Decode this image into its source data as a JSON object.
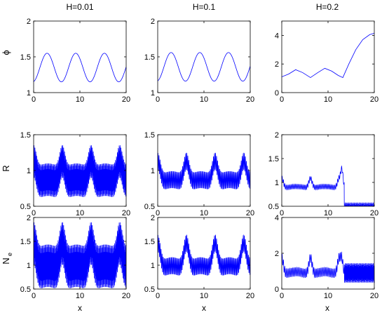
{
  "figure": {
    "col_titles": [
      "H=0.01",
      "H=0.1",
      "H=0.2"
    ],
    "row_labels": [
      "ϕ",
      "R",
      "N",
      "e"
    ],
    "xlabel": "x"
  },
  "style": {
    "line_color": "#0000ff",
    "axis_color": "#000000"
  },
  "chart_data": [
    {
      "type": "line",
      "row": 0,
      "col": 0,
      "H": 0.01,
      "ylabel": "ϕ",
      "xlim": [
        0,
        20
      ],
      "ylim": [
        1,
        2
      ],
      "xticks": [
        0,
        10,
        20
      ],
      "yticks": [
        1,
        1.5,
        2
      ],
      "model": {
        "kind": "cos",
        "mean": 1.35,
        "amp": 0.2,
        "period": 6.2,
        "phase": 2.9,
        "band": 0
      },
      "grid": false,
      "legend": false
    },
    {
      "type": "line",
      "row": 0,
      "col": 1,
      "H": 0.1,
      "ylabel": "",
      "xlim": [
        0,
        20
      ],
      "ylim": [
        1,
        2
      ],
      "xticks": [
        0,
        10,
        20
      ],
      "yticks": [
        1,
        1.5,
        2
      ],
      "model": {
        "kind": "cos",
        "mean": 1.36,
        "amp": 0.2,
        "period": 6.2,
        "phase": 2.9,
        "band": 0
      },
      "grid": false,
      "legend": false
    },
    {
      "type": "line",
      "row": 0,
      "col": 2,
      "H": 0.2,
      "ylabel": "",
      "xlim": [
        0,
        20
      ],
      "ylim": [
        0,
        5
      ],
      "xticks": [
        0,
        10,
        20
      ],
      "yticks": [
        0,
        2,
        4
      ],
      "x": [
        0,
        1.5,
        3,
        4.5,
        6.2,
        7.8,
        9.3,
        10.8,
        12.2,
        13.2,
        14.5,
        16,
        17.5,
        19,
        20
      ],
      "y": [
        1.1,
        1.3,
        1.6,
        1.4,
        1.05,
        1.4,
        1.7,
        1.5,
        1.2,
        1.05,
        2.0,
        3.0,
        3.7,
        4.05,
        4.15
      ],
      "grid": false,
      "legend": false
    },
    {
      "type": "line",
      "row": 1,
      "col": 0,
      "H": 0.01,
      "ylabel": "R",
      "xlim": [
        0,
        20
      ],
      "ylim": [
        0.5,
        1.5
      ],
      "xticks": [
        0,
        10,
        20
      ],
      "yticks": [
        0.5,
        1,
        1.5
      ],
      "model": {
        "kind": "peaks",
        "base": 0.85,
        "peak": 1.15,
        "period": 6.2,
        "width": 0.8,
        "band": 0.23,
        "freq": 25
      },
      "grid": false,
      "legend": false
    },
    {
      "type": "line",
      "row": 1,
      "col": 1,
      "H": 0.1,
      "ylabel": "",
      "xlim": [
        0,
        20
      ],
      "ylim": [
        0.5,
        1.5
      ],
      "xticks": [
        0,
        10,
        20
      ],
      "yticks": [
        0.5,
        1,
        1.5
      ],
      "model": {
        "kind": "peaks",
        "base": 0.85,
        "peak": 1.15,
        "period": 6.2,
        "width": 0.8,
        "band": 0.12,
        "freq": 4.5
      },
      "grid": false,
      "legend": false
    },
    {
      "type": "line",
      "row": 1,
      "col": 2,
      "H": 0.2,
      "ylabel": "",
      "xlim": [
        0,
        20
      ],
      "ylim": [
        0.5,
        2
      ],
      "xticks": [
        0,
        10,
        20
      ],
      "yticks": [
        0.5,
        1,
        1.5,
        2
      ],
      "model": {
        "kind": "peaks",
        "base": 0.9,
        "peak": 1.1,
        "period": 6.2,
        "width": 0.5,
        "band": 0.05,
        "freq": 3.5,
        "spike": [
          13,
          1.45
        ],
        "tail": [
          13.5,
          0.4,
          0.18,
          14
        ]
      },
      "grid": false,
      "legend": false
    },
    {
      "type": "line",
      "row": 2,
      "col": 0,
      "H": 0.01,
      "ylabel": "N_e",
      "xlim": [
        0,
        20
      ],
      "ylim": [
        0.5,
        2
      ],
      "xticks": [
        0,
        10,
        20
      ],
      "yticks": [
        0.5,
        1,
        1.5,
        2
      ],
      "model": {
        "kind": "peaks",
        "base": 0.95,
        "peak": 1.5,
        "period": 6.2,
        "width": 0.8,
        "band": 0.45,
        "freq": 25
      },
      "grid": false,
      "legend": false
    },
    {
      "type": "line",
      "row": 2,
      "col": 1,
      "H": 0.1,
      "ylabel": "",
      "xlim": [
        0,
        20
      ],
      "ylim": [
        0.5,
        2
      ],
      "xticks": [
        0,
        10,
        20
      ],
      "yticks": [
        0.5,
        1,
        1.5,
        2
      ],
      "model": {
        "kind": "peaks",
        "base": 0.95,
        "peak": 1.5,
        "period": 6.2,
        "width": 0.8,
        "band": 0.18,
        "freq": 4.5
      },
      "grid": false,
      "legend": false
    },
    {
      "type": "line",
      "row": 2,
      "col": 2,
      "H": 0.2,
      "ylabel": "",
      "xlim": [
        0,
        20
      ],
      "ylim": [
        0,
        4
      ],
      "xticks": [
        0,
        10,
        20
      ],
      "yticks": [
        0,
        2,
        4
      ],
      "model": {
        "kind": "peaks",
        "base": 0.9,
        "peak": 1.8,
        "period": 6.2,
        "width": 0.5,
        "band": 0.25,
        "freq": 3.5,
        "spike": [
          13,
          2.5
        ],
        "tail": [
          13.5,
          0.9,
          0.55,
          14
        ]
      },
      "grid": false,
      "legend": false
    }
  ]
}
